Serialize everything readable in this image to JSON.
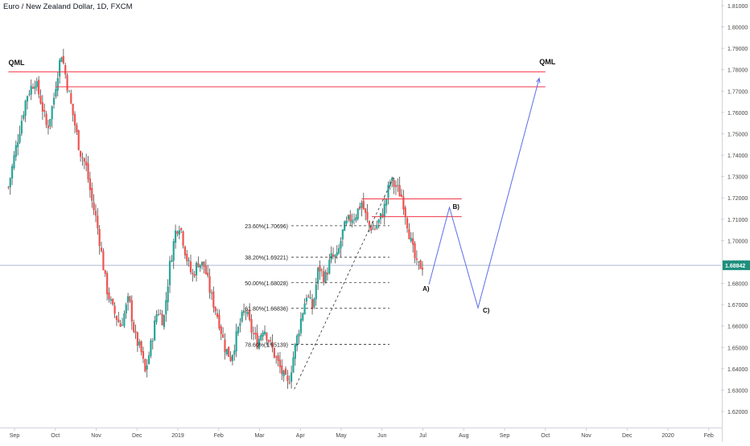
{
  "header": {
    "symbol": "Euro / New Zealand Dollar, 1D, FXCM"
  },
  "colors": {
    "up": "#26a69a",
    "down": "#ef5350",
    "wick": "#4a4a4a",
    "level": "#f23645",
    "pattern": "#5b6ee8",
    "fib": "#333333",
    "axis_text": "#444444",
    "price_tag_bg": "#1f8f7e",
    "current_line": "#8fa6c9"
  },
  "chart_data": {
    "type": "candlestick",
    "y_axis": {
      "min": 1.615,
      "max": 1.815,
      "ticks": [
        "1.62000",
        "1.63000",
        "1.64000",
        "1.65000",
        "1.66000",
        "1.67000",
        "1.68000",
        "1.69000",
        "1.70000",
        "1.71000",
        "1.72000",
        "1.73000",
        "1.74000",
        "1.75000",
        "1.76000",
        "1.77000",
        "1.78000",
        "1.79000",
        "1.80000",
        "1.81000"
      ]
    },
    "x_axis": {
      "labels": [
        "Sep",
        "Oct",
        "Nov",
        "Dec",
        "2019",
        "Feb",
        "Mar",
        "Apr",
        "May",
        "Jun",
        "Jul",
        "Aug",
        "Sep",
        "Oct",
        "Nov",
        "Dec",
        "2020",
        "Feb"
      ],
      "label_month_index": [
        0,
        1,
        2,
        3,
        4,
        5,
        6,
        7,
        8,
        9,
        10,
        11,
        12,
        13,
        14,
        15,
        16,
        17
      ],
      "start_month_index": -0.15,
      "end_month_index": 17.3
    },
    "current_price": {
      "label": "1.68842",
      "value": 1.68842
    },
    "price_path": [
      [
        -0.15,
        1.725
      ],
      [
        0.05,
        1.745
      ],
      [
        0.3,
        1.768
      ],
      [
        0.5,
        1.775
      ],
      [
        0.65,
        1.765
      ],
      [
        0.8,
        1.752
      ],
      [
        0.95,
        1.765
      ],
      [
        1.05,
        1.778
      ],
      [
        1.15,
        1.788
      ],
      [
        1.3,
        1.772
      ],
      [
        1.45,
        1.757
      ],
      [
        1.6,
        1.742
      ],
      [
        1.75,
        1.735
      ],
      [
        1.9,
        1.718
      ],
      [
        2.0,
        1.71
      ],
      [
        2.1,
        1.698
      ],
      [
        2.25,
        1.678
      ],
      [
        2.4,
        1.668
      ],
      [
        2.6,
        1.66
      ],
      [
        2.8,
        1.673
      ],
      [
        2.95,
        1.655
      ],
      [
        3.1,
        1.648
      ],
      [
        3.2,
        1.638
      ],
      [
        3.35,
        1.652
      ],
      [
        3.5,
        1.668
      ],
      [
        3.65,
        1.662
      ],
      [
        3.8,
        1.688
      ],
      [
        3.95,
        1.705
      ],
      [
        4.05,
        1.708
      ],
      [
        4.2,
        1.693
      ],
      [
        4.35,
        1.683
      ],
      [
        4.5,
        1.69
      ],
      [
        4.65,
        1.688
      ],
      [
        4.8,
        1.675
      ],
      [
        5.0,
        1.663
      ],
      [
        5.15,
        1.65
      ],
      [
        5.3,
        1.645
      ],
      [
        5.5,
        1.66
      ],
      [
        5.65,
        1.668
      ],
      [
        5.8,
        1.658
      ],
      [
        5.95,
        1.652
      ],
      [
        6.1,
        1.66
      ],
      [
        6.25,
        1.652
      ],
      [
        6.4,
        1.645
      ],
      [
        6.55,
        1.638
      ],
      [
        6.7,
        1.632
      ],
      [
        6.85,
        1.648
      ],
      [
        7.0,
        1.662
      ],
      [
        7.15,
        1.675
      ],
      [
        7.3,
        1.668
      ],
      [
        7.45,
        1.688
      ],
      [
        7.6,
        1.682
      ],
      [
        7.75,
        1.692
      ],
      [
        7.9,
        1.692
      ],
      [
        8.05,
        1.705
      ],
      [
        8.2,
        1.71
      ],
      [
        8.35,
        1.712
      ],
      [
        8.5,
        1.718
      ],
      [
        8.65,
        1.708
      ],
      [
        8.8,
        1.705
      ],
      [
        8.95,
        1.71
      ],
      [
        9.05,
        1.715
      ],
      [
        9.2,
        1.728
      ],
      [
        9.35,
        1.725
      ],
      [
        9.5,
        1.72
      ],
      [
        9.6,
        1.71
      ],
      [
        9.72,
        1.698
      ],
      [
        9.85,
        1.688
      ],
      [
        10.0,
        1.6884
      ]
    ],
    "horizontal_levels": [
      {
        "name": "QML",
        "price": 1.779,
        "from_month": -0.15,
        "to_month": 13.0
      },
      {
        "name": "",
        "price": 1.772,
        "from_month": 1.0,
        "to_month": 13.0
      },
      {
        "name": "",
        "price": 1.7195,
        "from_month": 8.5,
        "to_month": 10.95
      },
      {
        "name": "",
        "price": 1.7112,
        "from_month": 8.75,
        "to_month": 10.95
      }
    ],
    "qml_labels": [
      {
        "text": "QML",
        "month": -0.05,
        "price": 1.7822
      },
      {
        "text": "QML",
        "month": 12.95,
        "price": 1.7825
      }
    ],
    "fibonacci": {
      "swing_low": {
        "month": 6.85,
        "price": 1.6304
      },
      "swing_high": {
        "month": 9.3,
        "price": 1.7304
      },
      "line_end_month": 9.35,
      "levels": [
        {
          "label": "23.60%(1.70696)",
          "value": 1.70696
        },
        {
          "label": "38.20%(1.69221)",
          "value": 1.69221
        },
        {
          "label": "50.00%(1.68028)",
          "value": 1.68028
        },
        {
          "label": "61.80%(1.66836)",
          "value": 1.66836
        },
        {
          "label": "78.60%(1.65139)",
          "value": 1.65139
        }
      ]
    },
    "projection": [
      {
        "label": "A)",
        "month": 10.15,
        "price": 1.6795
      },
      {
        "label": "B)",
        "month": 10.65,
        "price": 1.7155
      },
      {
        "label": "C)",
        "month": 11.35,
        "price": 1.6685
      },
      {
        "label": "",
        "month": 12.85,
        "price": 1.776
      }
    ]
  }
}
